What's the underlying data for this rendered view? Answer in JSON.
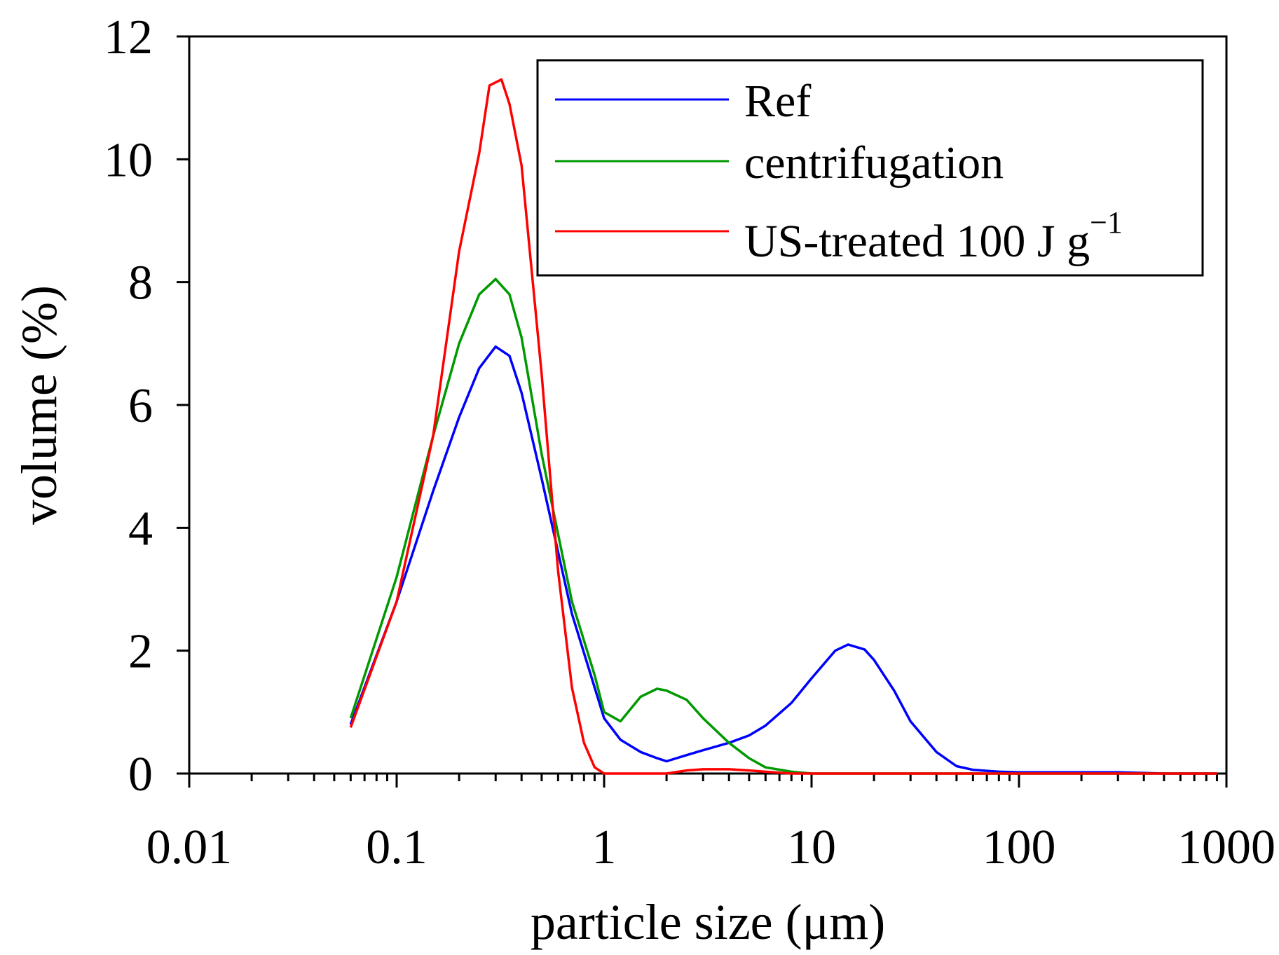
{
  "chart_data": {
    "type": "line",
    "xlabel": "particle size (μm)",
    "ylabel": "volume (%)",
    "xscale": "log",
    "xlim": [
      0.01,
      1000
    ],
    "ylim": [
      0,
      12
    ],
    "xticks": [
      {
        "value": 0.01,
        "label": "0.01"
      },
      {
        "value": 0.1,
        "label": "0.1"
      },
      {
        "value": 1,
        "label": "1"
      },
      {
        "value": 10,
        "label": "10"
      },
      {
        "value": 100,
        "label": "100"
      },
      {
        "value": 1000,
        "label": "1000"
      }
    ],
    "yticks": [
      {
        "value": 0,
        "label": "0"
      },
      {
        "value": 2,
        "label": "2"
      },
      {
        "value": 4,
        "label": "4"
      },
      {
        "value": 6,
        "label": "6"
      },
      {
        "value": 8,
        "label": "8"
      },
      {
        "value": 10,
        "label": "10"
      },
      {
        "value": 12,
        "label": "12"
      }
    ],
    "grid": false,
    "legend_position": "top-right",
    "series": [
      {
        "name": "Ref",
        "color": "#0000ff",
        "x": [
          0.06,
          0.1,
          0.15,
          0.2,
          0.25,
          0.3,
          0.35,
          0.4,
          0.5,
          0.7,
          0.9,
          1.0,
          1.2,
          1.5,
          1.8,
          2.0,
          2.5,
          3.0,
          4.0,
          5.0,
          6.0,
          8.0,
          10.0,
          13.0,
          15.0,
          18.0,
          20.0,
          25.0,
          30.0,
          40.0,
          50.0,
          60.0,
          80.0,
          100.0,
          200.0,
          300.0,
          500.0,
          900.0
        ],
        "y": [
          0.8,
          2.8,
          4.6,
          5.8,
          6.6,
          6.95,
          6.8,
          6.2,
          4.8,
          2.6,
          1.4,
          0.9,
          0.55,
          0.35,
          0.25,
          0.2,
          0.3,
          0.38,
          0.5,
          0.62,
          0.78,
          1.15,
          1.55,
          2.0,
          2.1,
          2.02,
          1.85,
          1.35,
          0.85,
          0.35,
          0.12,
          0.06,
          0.03,
          0.02,
          0.02,
          0.02,
          0.0,
          0.0
        ]
      },
      {
        "name": "centrifugation",
        "color": "#009900",
        "x": [
          0.06,
          0.1,
          0.15,
          0.2,
          0.25,
          0.3,
          0.35,
          0.4,
          0.5,
          0.7,
          0.9,
          1.0,
          1.2,
          1.5,
          1.8,
          2.0,
          2.5,
          3.0,
          4.0,
          5.0,
          6.0,
          8.0,
          10.0,
          20.0,
          100.0,
          900.0
        ],
        "y": [
          0.9,
          3.2,
          5.5,
          7.0,
          7.8,
          8.05,
          7.8,
          7.1,
          5.2,
          2.8,
          1.6,
          1.0,
          0.85,
          1.25,
          1.38,
          1.35,
          1.2,
          0.9,
          0.5,
          0.25,
          0.1,
          0.03,
          0.0,
          0.0,
          0.0,
          0.0
        ]
      },
      {
        "name": "US-treated 100 J g−1",
        "color": "#ff0000",
        "x": [
          0.06,
          0.1,
          0.15,
          0.2,
          0.25,
          0.28,
          0.32,
          0.35,
          0.4,
          0.5,
          0.6,
          0.7,
          0.8,
          0.9,
          1.0,
          1.2,
          1.5,
          2.0,
          2.5,
          3.0,
          4.0,
          5.0,
          6.0,
          8.0,
          10.0,
          100.0,
          900.0
        ],
        "y": [
          0.75,
          2.8,
          5.5,
          8.5,
          10.1,
          11.2,
          11.3,
          10.9,
          9.9,
          6.5,
          3.3,
          1.4,
          0.5,
          0.1,
          0.0,
          0.0,
          0.0,
          0.0,
          0.05,
          0.07,
          0.07,
          0.05,
          0.03,
          0.0,
          0.0,
          0.0,
          0.0
        ]
      }
    ],
    "legend": {
      "entries": [
        {
          "text": "Ref",
          "superscript": "",
          "color": "#0000ff"
        },
        {
          "text": "centrifugation",
          "superscript": "",
          "color": "#009900"
        },
        {
          "text": "US-treated 100 J g",
          "superscript": "−1",
          "color": "#ff0000"
        }
      ]
    }
  }
}
